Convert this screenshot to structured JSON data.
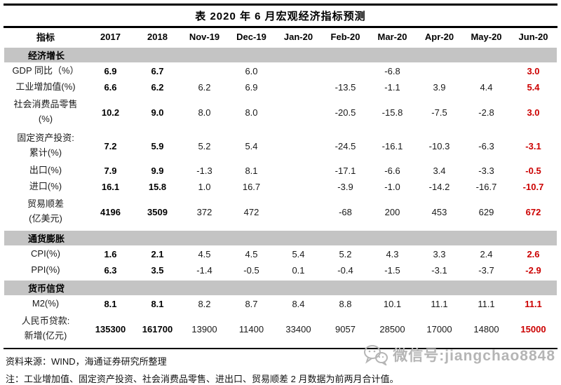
{
  "title": "表 2020 年 6 月宏观经济指标预测",
  "chart_data": {
    "type": "table",
    "title": "表 2020 年 6 月宏观经济指标预测",
    "columns": [
      "指标",
      "2017",
      "2018",
      "Nov-19",
      "Dec-19",
      "Jan-20",
      "Feb-20",
      "Mar-20",
      "Apr-20",
      "May-20",
      "Jun-20"
    ],
    "forecast_column": "Jun-20",
    "sections": [
      {
        "header": "经济增长",
        "rows": [
          {
            "label": [
              "GDP 同比（%）"
            ],
            "values": [
              "6.9",
              "6.7",
              "",
              "6.0",
              "",
              "",
              "-6.8",
              "",
              "",
              "3.0"
            ]
          },
          {
            "label": [
              "工业增加值(%)"
            ],
            "values": [
              "6.6",
              "6.2",
              "6.2",
              "6.9",
              "",
              "-13.5",
              "-1.1",
              "3.9",
              "4.4",
              "5.4"
            ]
          },
          {
            "label": [
              "社会消费品零售",
              "(%)"
            ],
            "values": [
              "10.2",
              "9.0",
              "8.0",
              "8.0",
              "",
              "-20.5",
              "-15.8",
              "-7.5",
              "-2.8",
              "3.0"
            ]
          },
          {
            "label": [
              "固定资产投资:",
              "累计(%)"
            ],
            "values": [
              "7.2",
              "5.9",
              "5.2",
              "5.4",
              "",
              "-24.5",
              "-16.1",
              "-10.3",
              "-6.3",
              "-3.1"
            ]
          },
          {
            "label": [
              "出口(%)"
            ],
            "values": [
              "7.9",
              "9.9",
              "-1.3",
              "8.1",
              "",
              "-17.1",
              "-6.6",
              "3.4",
              "-3.3",
              "-0.5"
            ]
          },
          {
            "label": [
              "进口(%)"
            ],
            "values": [
              "16.1",
              "15.8",
              "1.0",
              "16.7",
              "",
              "-3.9",
              "-1.0",
              "-14.2",
              "-16.7",
              "-10.7"
            ]
          },
          {
            "label": [
              "贸易顺差",
              "(亿美元)"
            ],
            "values": [
              "4196",
              "3509",
              "372",
              "472",
              "",
              "-68",
              "200",
              "453",
              "629",
              "672"
            ]
          }
        ]
      },
      {
        "header": "通货膨胀",
        "rows": [
          {
            "label": [
              "CPI(%)"
            ],
            "values": [
              "1.6",
              "2.1",
              "4.5",
              "4.5",
              "5.4",
              "5.2",
              "4.3",
              "3.3",
              "2.4",
              "2.6"
            ]
          },
          {
            "label": [
              "PPI(%)"
            ],
            "values": [
              "6.3",
              "3.5",
              "-1.4",
              "-0.5",
              "0.1",
              "-0.4",
              "-1.5",
              "-3.1",
              "-3.7",
              "-2.9"
            ]
          }
        ]
      },
      {
        "header": "货币信贷",
        "rows": [
          {
            "label": [
              "M2(%)"
            ],
            "values": [
              "8.1",
              "8.1",
              "8.2",
              "8.7",
              "8.4",
              "8.8",
              "10.1",
              "11.1",
              "11.1",
              "11.1"
            ]
          },
          {
            "label": [
              "人民币贷款:",
              "新增(亿元)"
            ],
            "values": [
              "135300",
              "161700",
              "13900",
              "11400",
              "33400",
              "9057",
              "28500",
              "17000",
              "14800",
              "15000"
            ]
          }
        ]
      }
    ]
  },
  "footer": {
    "source": "资料来源：WIND，海通证券研究所整理",
    "note": "注：工业增加值、固定资产投资、社会消费品零售、进出口、贸易顺差 2 月数据为前两月合计值。"
  },
  "watermark": {
    "icon": "wechat-icon",
    "text": "微信号:jiangchao8848"
  },
  "colors": {
    "forecast_red": "#cc0000",
    "section_bg": "#c4c4c4",
    "watermark_gray": "#b5b5b5",
    "text_black": "#000000"
  }
}
